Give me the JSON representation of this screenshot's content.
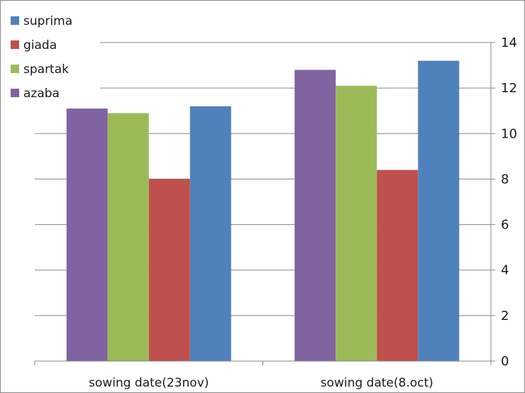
{
  "chart_data": {
    "type": "bar",
    "title": "",
    "xlabel": "",
    "ylabel": "",
    "categories": [
      "sowing date(23nov)",
      "sowing date(8.oct)"
    ],
    "series": [
      {
        "name": "azaba",
        "color": "#8064a2",
        "values": [
          11.1,
          12.8
        ]
      },
      {
        "name": "spartak",
        "color": "#9bbb59",
        "values": [
          10.9,
          12.1
        ]
      },
      {
        "name": "giada",
        "color": "#c0504d",
        "values": [
          8.0,
          8.4
        ]
      },
      {
        "name": "suprima",
        "color": "#4f81bd",
        "values": [
          11.2,
          13.2
        ]
      }
    ],
    "legend_order": [
      "suprima",
      "giada",
      "spartak",
      "azaba"
    ],
    "legend_position": "top-left",
    "ylim": [
      0,
      14
    ],
    "yticks": [
      0,
      2,
      4,
      6,
      8,
      10,
      12,
      14
    ],
    "y_axis_side": "right",
    "grid": true,
    "grid_color": "#868686"
  }
}
